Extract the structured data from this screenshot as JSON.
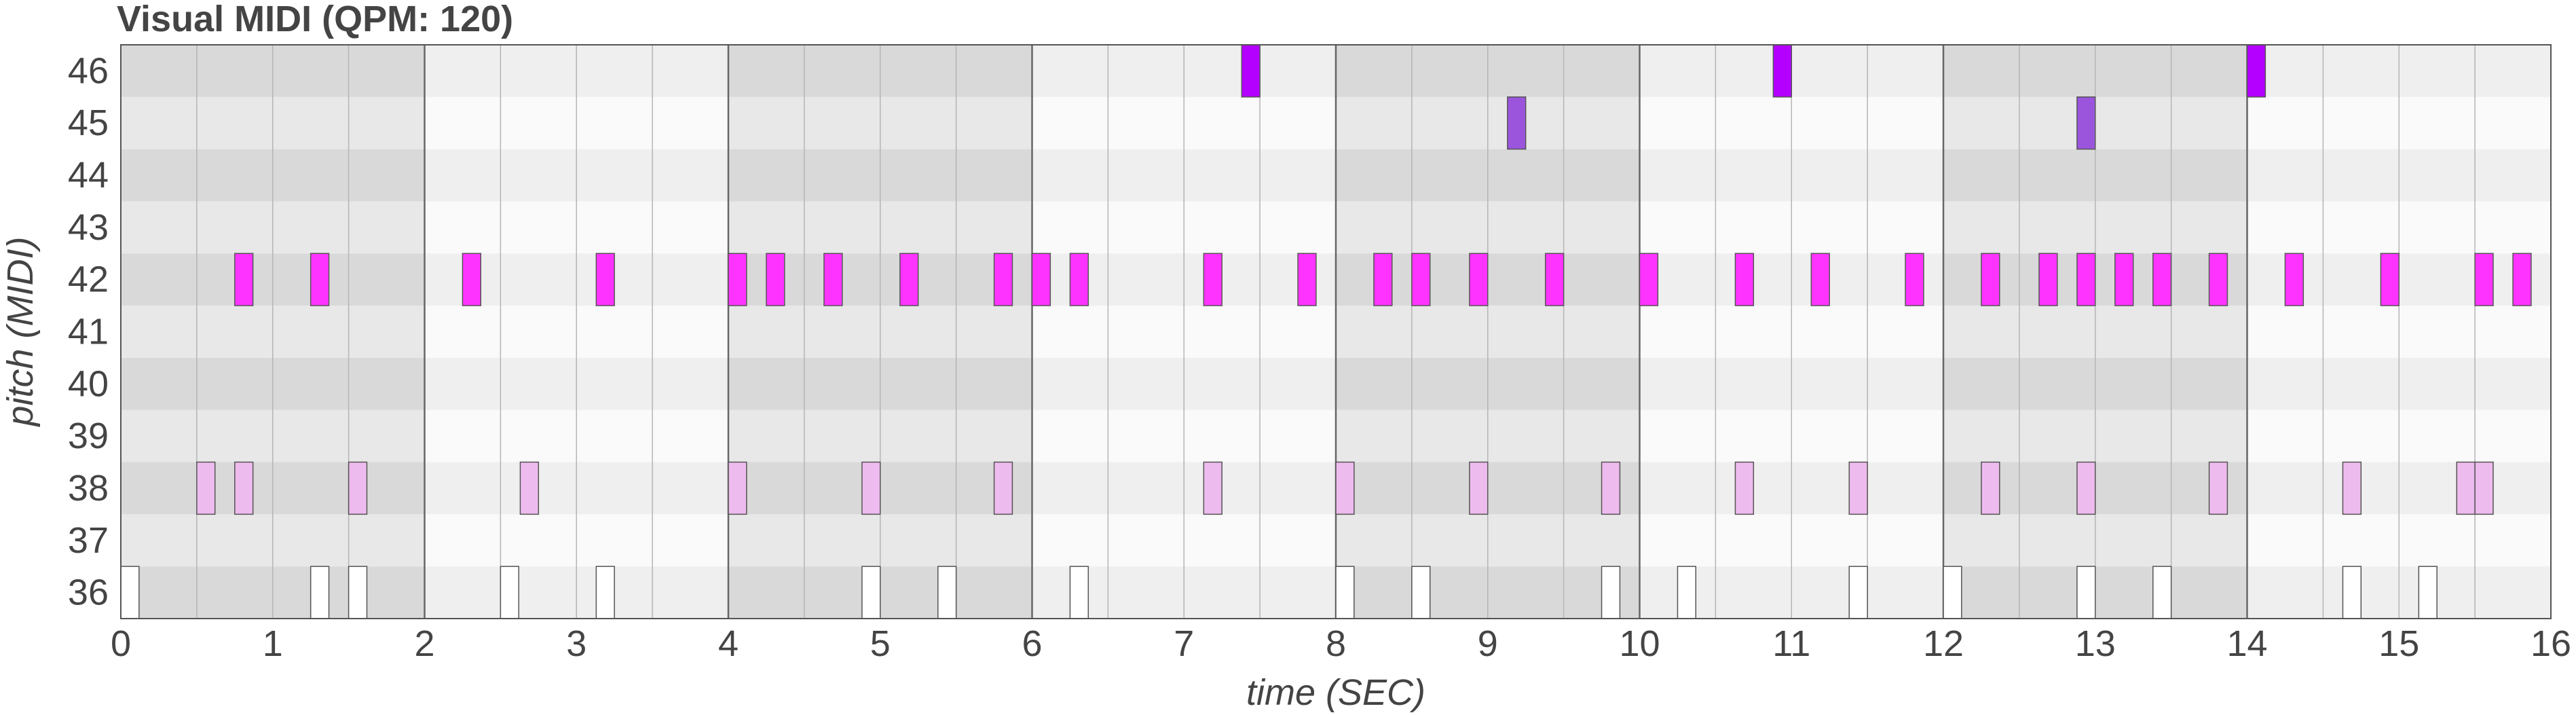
{
  "chart_data": {
    "type": "pianoroll",
    "title": "Visual MIDI (QPM: 120)",
    "xlabel": "time (SEC)",
    "ylabel": "pitch (MIDI)",
    "xlim": [
      0,
      16
    ],
    "ylim": [
      36,
      46
    ],
    "x_ticks": [
      "0",
      "1",
      "2",
      "3",
      "4",
      "5",
      "6",
      "7",
      "8",
      "9",
      "10",
      "11",
      "12",
      "13",
      "14",
      "15",
      "16"
    ],
    "y_ticks": [
      "46",
      "45",
      "44",
      "43",
      "42",
      "41",
      "40",
      "39",
      "38",
      "37",
      "36"
    ],
    "grid": true,
    "notes": [
      {
        "pitch": 46,
        "start": 7.38,
        "end": 7.5,
        "color": "#b300ff"
      },
      {
        "pitch": 46,
        "start": 10.88,
        "end": 11.0,
        "color": "#b300ff"
      },
      {
        "pitch": 46,
        "start": 14.0,
        "end": 14.12,
        "color": "#b300ff"
      },
      {
        "pitch": 45,
        "start": 9.13,
        "end": 9.25,
        "color": "#9b55dd"
      },
      {
        "pitch": 45,
        "start": 12.88,
        "end": 13.0,
        "color": "#9b55dd"
      },
      {
        "pitch": 42,
        "start": 0.75,
        "end": 0.87,
        "color": "#ff33ff"
      },
      {
        "pitch": 42,
        "start": 1.25,
        "end": 1.37,
        "color": "#ff33ff"
      },
      {
        "pitch": 42,
        "start": 2.25,
        "end": 2.37,
        "color": "#ff33ff"
      },
      {
        "pitch": 42,
        "start": 3.13,
        "end": 3.25,
        "color": "#ff33ff"
      },
      {
        "pitch": 42,
        "start": 4.0,
        "end": 4.12,
        "color": "#ff33ff"
      },
      {
        "pitch": 42,
        "start": 4.25,
        "end": 4.37,
        "color": "#ff33ff"
      },
      {
        "pitch": 42,
        "start": 4.63,
        "end": 4.75,
        "color": "#ff33ff"
      },
      {
        "pitch": 42,
        "start": 5.13,
        "end": 5.25,
        "color": "#ff33ff"
      },
      {
        "pitch": 42,
        "start": 5.75,
        "end": 5.87,
        "color": "#ff33ff"
      },
      {
        "pitch": 42,
        "start": 6.0,
        "end": 6.12,
        "color": "#ff33ff"
      },
      {
        "pitch": 42,
        "start": 6.25,
        "end": 6.37,
        "color": "#ff33ff"
      },
      {
        "pitch": 42,
        "start": 7.13,
        "end": 7.25,
        "color": "#ff33ff"
      },
      {
        "pitch": 42,
        "start": 7.75,
        "end": 7.87,
        "color": "#ff33ff"
      },
      {
        "pitch": 42,
        "start": 8.25,
        "end": 8.37,
        "color": "#ff33ff"
      },
      {
        "pitch": 42,
        "start": 8.5,
        "end": 8.62,
        "color": "#ff33ff"
      },
      {
        "pitch": 42,
        "start": 8.88,
        "end": 9.0,
        "color": "#ff33ff"
      },
      {
        "pitch": 42,
        "start": 9.38,
        "end": 9.5,
        "color": "#ff33ff"
      },
      {
        "pitch": 42,
        "start": 10.0,
        "end": 10.12,
        "color": "#ff33ff"
      },
      {
        "pitch": 42,
        "start": 10.63,
        "end": 10.75,
        "color": "#ff33ff"
      },
      {
        "pitch": 42,
        "start": 11.13,
        "end": 11.25,
        "color": "#ff33ff"
      },
      {
        "pitch": 42,
        "start": 11.75,
        "end": 11.87,
        "color": "#ff33ff"
      },
      {
        "pitch": 42,
        "start": 12.25,
        "end": 12.37,
        "color": "#ff33ff"
      },
      {
        "pitch": 42,
        "start": 12.63,
        "end": 12.75,
        "color": "#ff33ff"
      },
      {
        "pitch": 42,
        "start": 12.88,
        "end": 13.0,
        "color": "#ff33ff"
      },
      {
        "pitch": 42,
        "start": 13.13,
        "end": 13.25,
        "color": "#ff33ff"
      },
      {
        "pitch": 42,
        "start": 13.38,
        "end": 13.5,
        "color": "#ff33ff"
      },
      {
        "pitch": 42,
        "start": 13.75,
        "end": 13.87,
        "color": "#ff33ff"
      },
      {
        "pitch": 42,
        "start": 14.25,
        "end": 14.37,
        "color": "#ff33ff"
      },
      {
        "pitch": 42,
        "start": 14.88,
        "end": 15.0,
        "color": "#ff33ff"
      },
      {
        "pitch": 42,
        "start": 15.5,
        "end": 15.62,
        "color": "#ff33ff"
      },
      {
        "pitch": 42,
        "start": 15.75,
        "end": 15.87,
        "color": "#ff33ff"
      },
      {
        "pitch": 38,
        "start": 0.5,
        "end": 0.62,
        "color": "#eebbee"
      },
      {
        "pitch": 38,
        "start": 0.75,
        "end": 0.87,
        "color": "#eebbee"
      },
      {
        "pitch": 38,
        "start": 1.5,
        "end": 1.62,
        "color": "#eebbee"
      },
      {
        "pitch": 38,
        "start": 2.63,
        "end": 2.75,
        "color": "#eebbee"
      },
      {
        "pitch": 38,
        "start": 4.0,
        "end": 4.12,
        "color": "#eebbee"
      },
      {
        "pitch": 38,
        "start": 4.88,
        "end": 5.0,
        "color": "#eebbee"
      },
      {
        "pitch": 38,
        "start": 5.75,
        "end": 5.87,
        "color": "#eebbee"
      },
      {
        "pitch": 38,
        "start": 7.13,
        "end": 7.25,
        "color": "#eebbee"
      },
      {
        "pitch": 38,
        "start": 8.0,
        "end": 8.12,
        "color": "#eebbee"
      },
      {
        "pitch": 38,
        "start": 8.88,
        "end": 9.0,
        "color": "#eebbee"
      },
      {
        "pitch": 38,
        "start": 9.75,
        "end": 9.87,
        "color": "#eebbee"
      },
      {
        "pitch": 38,
        "start": 10.63,
        "end": 10.75,
        "color": "#eebbee"
      },
      {
        "pitch": 38,
        "start": 11.38,
        "end": 11.5,
        "color": "#eebbee"
      },
      {
        "pitch": 38,
        "start": 12.25,
        "end": 12.37,
        "color": "#eebbee"
      },
      {
        "pitch": 38,
        "start": 12.88,
        "end": 13.0,
        "color": "#eebbee"
      },
      {
        "pitch": 38,
        "start": 13.75,
        "end": 13.87,
        "color": "#eebbee"
      },
      {
        "pitch": 38,
        "start": 14.63,
        "end": 14.75,
        "color": "#eebbee"
      },
      {
        "pitch": 38,
        "start": 15.38,
        "end": 15.5,
        "color": "#eebbee"
      },
      {
        "pitch": 38,
        "start": 15.5,
        "end": 15.62,
        "color": "#eebbee"
      },
      {
        "pitch": 36,
        "start": 0.0,
        "end": 0.12,
        "color": "#ffffff"
      },
      {
        "pitch": 36,
        "start": 1.25,
        "end": 1.37,
        "color": "#ffffff"
      },
      {
        "pitch": 36,
        "start": 1.5,
        "end": 1.62,
        "color": "#ffffff"
      },
      {
        "pitch": 36,
        "start": 2.5,
        "end": 2.62,
        "color": "#ffffff"
      },
      {
        "pitch": 36,
        "start": 3.13,
        "end": 3.25,
        "color": "#ffffff"
      },
      {
        "pitch": 36,
        "start": 4.88,
        "end": 5.0,
        "color": "#ffffff"
      },
      {
        "pitch": 36,
        "start": 5.38,
        "end": 5.5,
        "color": "#ffffff"
      },
      {
        "pitch": 36,
        "start": 6.25,
        "end": 6.37,
        "color": "#ffffff"
      },
      {
        "pitch": 36,
        "start": 8.0,
        "end": 8.12,
        "color": "#ffffff"
      },
      {
        "pitch": 36,
        "start": 8.5,
        "end": 8.62,
        "color": "#ffffff"
      },
      {
        "pitch": 36,
        "start": 9.75,
        "end": 9.87,
        "color": "#ffffff"
      },
      {
        "pitch": 36,
        "start": 10.25,
        "end": 10.37,
        "color": "#ffffff"
      },
      {
        "pitch": 36,
        "start": 11.38,
        "end": 11.5,
        "color": "#ffffff"
      },
      {
        "pitch": 36,
        "start": 12.0,
        "end": 12.12,
        "color": "#ffffff"
      },
      {
        "pitch": 36,
        "start": 12.88,
        "end": 13.0,
        "color": "#ffffff"
      },
      {
        "pitch": 36,
        "start": 13.38,
        "end": 13.5,
        "color": "#ffffff"
      },
      {
        "pitch": 36,
        "start": 14.63,
        "end": 14.75,
        "color": "#ffffff"
      },
      {
        "pitch": 36,
        "start": 15.13,
        "end": 15.25,
        "color": "#ffffff"
      }
    ]
  }
}
